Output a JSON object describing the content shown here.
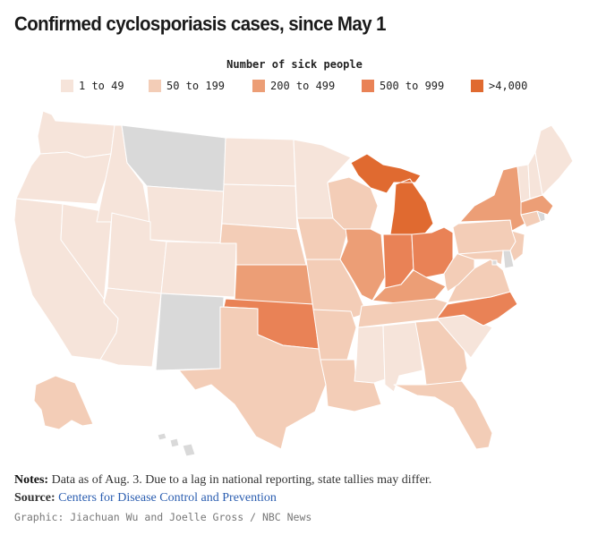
{
  "title": "Confirmed cyclosporiasis cases, since May 1",
  "legend": {
    "title": "Number of sick people",
    "items": [
      {
        "label": "1 to 49",
        "color": "#f6e4da"
      },
      {
        "label": "50 to 199",
        "color": "#f3cdb7"
      },
      {
        "label": "200 to 499",
        "color": "#ec9e76"
      },
      {
        "label": "500 to 999",
        "color": "#e98256"
      },
      {
        "label": ">4,000",
        "color": "#e06a30"
      }
    ],
    "no_data_color": "#d9d9d9"
  },
  "states": {
    "WA": 0,
    "OR": 0,
    "CA": 0,
    "NV": 0,
    "ID": 0,
    "MT": -1,
    "WY": 0,
    "UT": 0,
    "AZ": 0,
    "CO": 0,
    "NM": -1,
    "ND": 0,
    "SD": 0,
    "NE": 1,
    "KS": 2,
    "OK": 3,
    "TX": 1,
    "MN": 0,
    "IA": 1,
    "MO": 1,
    "AR": 1,
    "LA": 1,
    "WI": 1,
    "IL": 2,
    "MI": 4,
    "IN": 3,
    "OH": 3,
    "KY": 2,
    "TN": 1,
    "MS": 0,
    "AL": 0,
    "GA": 1,
    "FL": 1,
    "SC": 0,
    "NC": 3,
    "VA": 1,
    "WV": 1,
    "PA": 1,
    "NY": 2,
    "NJ": 1,
    "DE": -1,
    "MD": 1,
    "DC": -1,
    "CT": 1,
    "RI": -1,
    "MA": 2,
    "VT": 0,
    "NH": 0,
    "ME": 0,
    "AK": 1,
    "HI": -1
  },
  "notes": {
    "label": "Notes:",
    "text": "Data as of Aug. 3. Due to a lag in national reporting, state tallies may differ."
  },
  "source": {
    "label": "Source:",
    "link_text": "Centers for Disease Control and Prevention"
  },
  "credit": "Graphic: Jiachuan Wu and Joelle Gross / NBC News"
}
